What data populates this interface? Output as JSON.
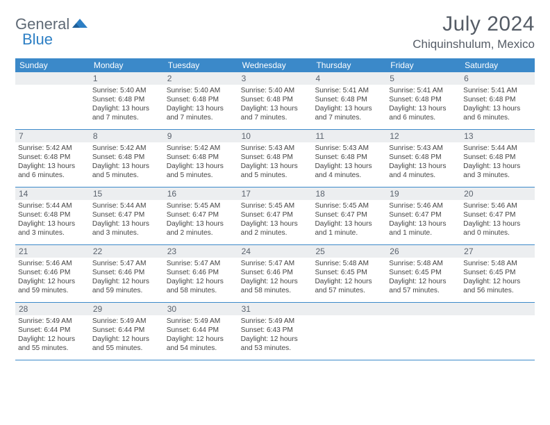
{
  "logo": {
    "text1": "General",
    "text2": "Blue"
  },
  "title": "July 2024",
  "location": "Chiquinshulum, Mexico",
  "colors": {
    "header_bg": "#3b89c9",
    "header_text": "#ffffff",
    "daynum_bg": "#eceef0",
    "border": "#3b89c9",
    "logo_gray": "#5f6a76",
    "logo_blue": "#2d7fc4"
  },
  "day_names": [
    "Sunday",
    "Monday",
    "Tuesday",
    "Wednesday",
    "Thursday",
    "Friday",
    "Saturday"
  ],
  "weeks": [
    [
      {
        "n": "",
        "sr": "",
        "ss": "",
        "dl": ""
      },
      {
        "n": "1",
        "sr": "Sunrise: 5:40 AM",
        "ss": "Sunset: 6:48 PM",
        "dl": "Daylight: 13 hours and 7 minutes."
      },
      {
        "n": "2",
        "sr": "Sunrise: 5:40 AM",
        "ss": "Sunset: 6:48 PM",
        "dl": "Daylight: 13 hours and 7 minutes."
      },
      {
        "n": "3",
        "sr": "Sunrise: 5:40 AM",
        "ss": "Sunset: 6:48 PM",
        "dl": "Daylight: 13 hours and 7 minutes."
      },
      {
        "n": "4",
        "sr": "Sunrise: 5:41 AM",
        "ss": "Sunset: 6:48 PM",
        "dl": "Daylight: 13 hours and 7 minutes."
      },
      {
        "n": "5",
        "sr": "Sunrise: 5:41 AM",
        "ss": "Sunset: 6:48 PM",
        "dl": "Daylight: 13 hours and 6 minutes."
      },
      {
        "n": "6",
        "sr": "Sunrise: 5:41 AM",
        "ss": "Sunset: 6:48 PM",
        "dl": "Daylight: 13 hours and 6 minutes."
      }
    ],
    [
      {
        "n": "7",
        "sr": "Sunrise: 5:42 AM",
        "ss": "Sunset: 6:48 PM",
        "dl": "Daylight: 13 hours and 6 minutes."
      },
      {
        "n": "8",
        "sr": "Sunrise: 5:42 AM",
        "ss": "Sunset: 6:48 PM",
        "dl": "Daylight: 13 hours and 5 minutes."
      },
      {
        "n": "9",
        "sr": "Sunrise: 5:42 AM",
        "ss": "Sunset: 6:48 PM",
        "dl": "Daylight: 13 hours and 5 minutes."
      },
      {
        "n": "10",
        "sr": "Sunrise: 5:43 AM",
        "ss": "Sunset: 6:48 PM",
        "dl": "Daylight: 13 hours and 5 minutes."
      },
      {
        "n": "11",
        "sr": "Sunrise: 5:43 AM",
        "ss": "Sunset: 6:48 PM",
        "dl": "Daylight: 13 hours and 4 minutes."
      },
      {
        "n": "12",
        "sr": "Sunrise: 5:43 AM",
        "ss": "Sunset: 6:48 PM",
        "dl": "Daylight: 13 hours and 4 minutes."
      },
      {
        "n": "13",
        "sr": "Sunrise: 5:44 AM",
        "ss": "Sunset: 6:48 PM",
        "dl": "Daylight: 13 hours and 3 minutes."
      }
    ],
    [
      {
        "n": "14",
        "sr": "Sunrise: 5:44 AM",
        "ss": "Sunset: 6:48 PM",
        "dl": "Daylight: 13 hours and 3 minutes."
      },
      {
        "n": "15",
        "sr": "Sunrise: 5:44 AM",
        "ss": "Sunset: 6:47 PM",
        "dl": "Daylight: 13 hours and 3 minutes."
      },
      {
        "n": "16",
        "sr": "Sunrise: 5:45 AM",
        "ss": "Sunset: 6:47 PM",
        "dl": "Daylight: 13 hours and 2 minutes."
      },
      {
        "n": "17",
        "sr": "Sunrise: 5:45 AM",
        "ss": "Sunset: 6:47 PM",
        "dl": "Daylight: 13 hours and 2 minutes."
      },
      {
        "n": "18",
        "sr": "Sunrise: 5:45 AM",
        "ss": "Sunset: 6:47 PM",
        "dl": "Daylight: 13 hours and 1 minute."
      },
      {
        "n": "19",
        "sr": "Sunrise: 5:46 AM",
        "ss": "Sunset: 6:47 PM",
        "dl": "Daylight: 13 hours and 1 minute."
      },
      {
        "n": "20",
        "sr": "Sunrise: 5:46 AM",
        "ss": "Sunset: 6:47 PM",
        "dl": "Daylight: 13 hours and 0 minutes."
      }
    ],
    [
      {
        "n": "21",
        "sr": "Sunrise: 5:46 AM",
        "ss": "Sunset: 6:46 PM",
        "dl": "Daylight: 12 hours and 59 minutes."
      },
      {
        "n": "22",
        "sr": "Sunrise: 5:47 AM",
        "ss": "Sunset: 6:46 PM",
        "dl": "Daylight: 12 hours and 59 minutes."
      },
      {
        "n": "23",
        "sr": "Sunrise: 5:47 AM",
        "ss": "Sunset: 6:46 PM",
        "dl": "Daylight: 12 hours and 58 minutes."
      },
      {
        "n": "24",
        "sr": "Sunrise: 5:47 AM",
        "ss": "Sunset: 6:46 PM",
        "dl": "Daylight: 12 hours and 58 minutes."
      },
      {
        "n": "25",
        "sr": "Sunrise: 5:48 AM",
        "ss": "Sunset: 6:45 PM",
        "dl": "Daylight: 12 hours and 57 minutes."
      },
      {
        "n": "26",
        "sr": "Sunrise: 5:48 AM",
        "ss": "Sunset: 6:45 PM",
        "dl": "Daylight: 12 hours and 57 minutes."
      },
      {
        "n": "27",
        "sr": "Sunrise: 5:48 AM",
        "ss": "Sunset: 6:45 PM",
        "dl": "Daylight: 12 hours and 56 minutes."
      }
    ],
    [
      {
        "n": "28",
        "sr": "Sunrise: 5:49 AM",
        "ss": "Sunset: 6:44 PM",
        "dl": "Daylight: 12 hours and 55 minutes."
      },
      {
        "n": "29",
        "sr": "Sunrise: 5:49 AM",
        "ss": "Sunset: 6:44 PM",
        "dl": "Daylight: 12 hours and 55 minutes."
      },
      {
        "n": "30",
        "sr": "Sunrise: 5:49 AM",
        "ss": "Sunset: 6:44 PM",
        "dl": "Daylight: 12 hours and 54 minutes."
      },
      {
        "n": "31",
        "sr": "Sunrise: 5:49 AM",
        "ss": "Sunset: 6:43 PM",
        "dl": "Daylight: 12 hours and 53 minutes."
      },
      {
        "n": "",
        "sr": "",
        "ss": "",
        "dl": ""
      },
      {
        "n": "",
        "sr": "",
        "ss": "",
        "dl": ""
      },
      {
        "n": "",
        "sr": "",
        "ss": "",
        "dl": ""
      }
    ]
  ]
}
